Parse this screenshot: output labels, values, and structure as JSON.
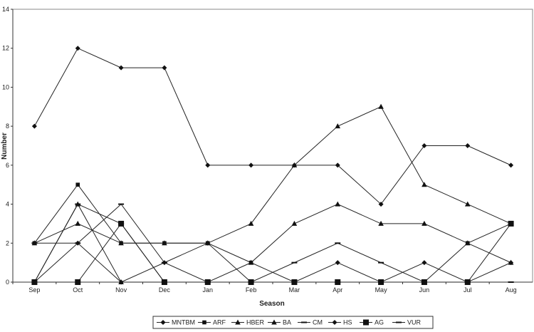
{
  "chart_data": {
    "type": "line",
    "title": "",
    "xlabel": "Season",
    "ylabel": "Number",
    "ylim": [
      0,
      14
    ],
    "yticks": [
      "0",
      "2",
      "4",
      "6",
      "8",
      "10",
      "12",
      "14"
    ],
    "categories": [
      "Sep",
      "Oct",
      "Nov",
      "Dec",
      "Jan",
      "Feb",
      "Mar",
      "Apr",
      "May",
      "Jun",
      "Jul",
      "Aug"
    ],
    "grid": false,
    "legend_position": "bottom",
    "series": [
      {
        "name": "MNTBM",
        "marker": "diamond",
        "values": [
          8,
          12,
          11,
          11,
          6,
          6,
          6,
          6,
          4,
          7,
          7,
          6
        ]
      },
      {
        "name": "ARF",
        "marker": "square",
        "values": [
          2,
          5,
          2,
          2,
          2,
          1,
          0,
          0,
          0,
          0,
          2,
          3
        ]
      },
      {
        "name": "HBER",
        "marker": "triangle",
        "values": [
          2,
          3,
          2,
          2,
          2,
          3,
          6,
          8,
          9,
          5,
          4,
          3
        ]
      },
      {
        "name": "BA",
        "marker": "triangle",
        "values": [
          0,
          4,
          0,
          0,
          0,
          1,
          3,
          4,
          3,
          3,
          2,
          1
        ]
      },
      {
        "name": "CM",
        "marker": "dash",
        "values": [
          0,
          4,
          3,
          0,
          0,
          0,
          1,
          2,
          1,
          0,
          0,
          0
        ]
      },
      {
        "name": "HS",
        "marker": "diamond",
        "values": [
          0,
          2,
          0,
          1,
          2,
          0,
          0,
          1,
          0,
          1,
          0,
          1
        ]
      },
      {
        "name": "AG",
        "marker": "bigsquare",
        "values": [
          0,
          0,
          3,
          0,
          0,
          0,
          0,
          0,
          0,
          0,
          0,
          3
        ]
      },
      {
        "name": "VUR",
        "marker": "dash",
        "values": [
          2,
          2,
          4,
          1,
          0,
          0,
          0,
          0,
          0,
          0,
          0,
          0
        ]
      }
    ]
  }
}
